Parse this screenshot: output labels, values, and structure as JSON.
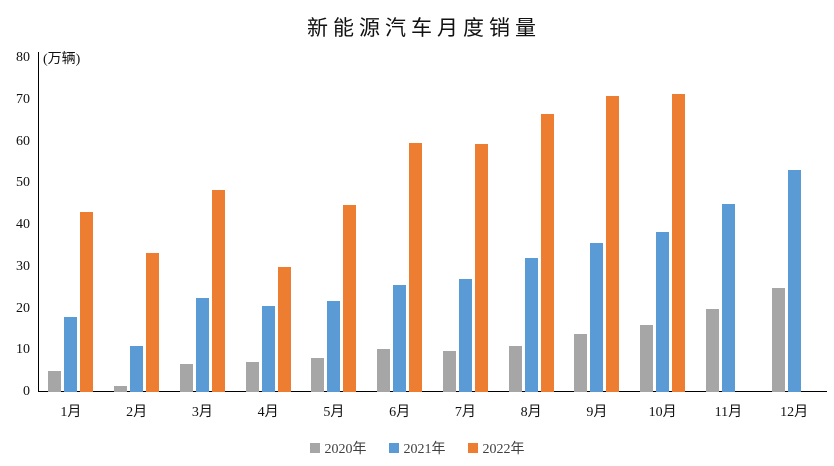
{
  "chart_data": {
    "type": "bar",
    "title": "新能源汽车月度销量",
    "unit_label": "(万辆)",
    "xlabel": "",
    "ylabel": "万辆",
    "ylim": [
      0,
      80
    ],
    "y_ticks": [
      0,
      10,
      20,
      30,
      40,
      50,
      60,
      70,
      80
    ],
    "grid": false,
    "legend_position": "bottom",
    "categories": [
      "1月",
      "2月",
      "3月",
      "4月",
      "5月",
      "6月",
      "7月",
      "8月",
      "9月",
      "10月",
      "11月",
      "12月"
    ],
    "series": [
      {
        "name": "2020年",
        "color": "#A6A6A6",
        "values": [
          5.0,
          1.5,
          6.6,
          7.2,
          8.2,
          10.4,
          9.8,
          10.9,
          13.8,
          16.0,
          20.0,
          24.8
        ]
      },
      {
        "name": "2021年",
        "color": "#5B9BD5",
        "values": [
          17.9,
          11.1,
          22.6,
          20.6,
          21.7,
          25.6,
          27.1,
          32.1,
          35.7,
          38.3,
          45.0,
          53.1
        ]
      },
      {
        "name": "2022年",
        "color": "#ED7D31",
        "values": [
          43.1,
          33.4,
          48.4,
          29.9,
          44.7,
          59.6,
          59.3,
          66.6,
          70.8,
          71.4,
          null,
          null
        ]
      }
    ],
    "axis_color": "#000000",
    "background_color": "#FFFFFF"
  }
}
